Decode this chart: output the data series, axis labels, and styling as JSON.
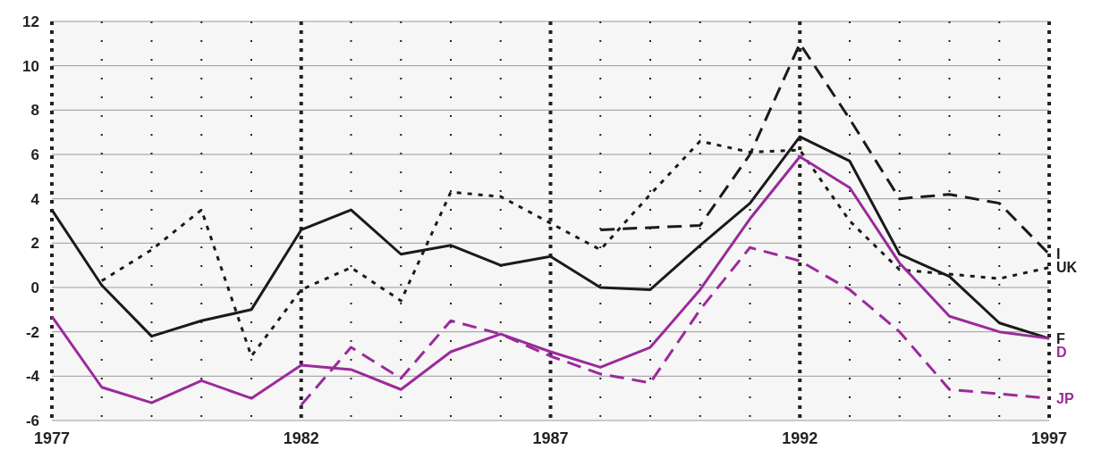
{
  "chart_data": {
    "type": "line",
    "xlim": [
      1977,
      1997
    ],
    "xticks": [
      1977,
      {
        "value": 1978,
        "label": null
      },
      {
        "value": 1979,
        "label": null
      },
      {
        "value": 1980,
        "label": null
      },
      {
        "value": 1981,
        "label": null
      },
      1982,
      {
        "value": 1983,
        "label": null
      },
      {
        "value": 1984,
        "label": null
      },
      {
        "value": 1985,
        "label": null
      },
      {
        "value": 1986,
        "label": null
      },
      1987,
      {
        "value": 1988,
        "label": null
      },
      {
        "value": 1989,
        "label": null
      },
      {
        "value": 1990,
        "label": null
      },
      {
        "value": 1991,
        "label": null
      },
      1992,
      {
        "value": 1993,
        "label": null
      },
      {
        "value": 1994,
        "label": null
      },
      {
        "value": 1995,
        "label": null
      },
      {
        "value": 1996,
        "label": null
      },
      1997
    ],
    "ylim": [
      -6,
      12
    ],
    "yticks": [
      -6,
      -4,
      -2,
      0,
      2,
      4,
      6,
      8,
      10,
      12
    ],
    "grid": true,
    "legend": false,
    "series": [
      {
        "name": "F",
        "color": "#1a1a1a",
        "line_style": "solid",
        "x": [
          1977,
          1978,
          1979,
          1980,
          1981,
          1982,
          1983,
          1984,
          1985,
          1986,
          1987,
          1988,
          1989,
          1990,
          1991,
          1992,
          1993,
          1994,
          1995,
          1996,
          1997
        ],
        "values": [
          3.5,
          0.1,
          -2.2,
          -1.5,
          -1.0,
          2.6,
          3.5,
          1.5,
          1.9,
          1.0,
          1.4,
          0,
          -0.1,
          1.9,
          3.8,
          6.8,
          5.7,
          1.5,
          0.5,
          -1.6,
          -2.3
        ]
      },
      {
        "name": "UK",
        "color": "#1a1a1a",
        "line_style": "dotted",
        "x": [
          1978,
          1979,
          1980,
          1981,
          1982,
          1983,
          1984,
          1985,
          1986,
          1987,
          1988,
          1989,
          1990,
          1991,
          1992,
          1993,
          1994,
          1995,
          1996,
          1997
        ],
        "values": [
          0.3,
          1.7,
          3.5,
          -3.1,
          -0.1,
          0.9,
          -0.6,
          4.3,
          4.1,
          2.9,
          1.7,
          4.2,
          6.6,
          6.1,
          6.2,
          3.0,
          0.8,
          0.6,
          0.4,
          0.9
        ]
      },
      {
        "name": "I",
        "color": "#1a1a1a",
        "line_style": "dashed",
        "x": [
          1988,
          1989,
          1990,
          1991,
          1992,
          1993,
          1994,
          1995,
          1996,
          1997
        ],
        "values": [
          2.6,
          2.7,
          2.8,
          6.0,
          11.0,
          7.6,
          4.0,
          4.2,
          3.8,
          1.5
        ]
      },
      {
        "name": "D",
        "color": "#9b2a9b",
        "line_style": "solid",
        "x": [
          1977,
          1978,
          1979,
          1980,
          1981,
          1982,
          1983,
          1984,
          1985,
          1986,
          1987,
          1988,
          1989,
          1990,
          1991,
          1992,
          1993,
          1994,
          1995,
          1996,
          1997
        ],
        "values": [
          -1.3,
          -4.5,
          -5.2,
          -4.2,
          -5.0,
          -3.5,
          -3.7,
          -4.6,
          -2.9,
          -2.1,
          -2.9,
          -3.6,
          -2.7,
          -0.1,
          3.1,
          5.9,
          4.5,
          1.1,
          -1.3,
          -2.0,
          -2.3
        ]
      },
      {
        "name": "JP",
        "color": "#9b2a9b",
        "line_style": "dashed",
        "x": [
          1982,
          1983,
          1984,
          1985,
          1986,
          1987,
          1988,
          1989,
          1990,
          1991,
          1992,
          1993,
          1994,
          1995,
          1996,
          1997
        ],
        "values": [
          -5.3,
          -2.7,
          -4.1,
          -1.5,
          -2.1,
          -3.1,
          -3.9,
          -4.3,
          -1.0,
          1.8,
          1.2,
          -0.1,
          -2.0,
          -4.6,
          -4.8,
          -5.0
        ]
      }
    ]
  }
}
